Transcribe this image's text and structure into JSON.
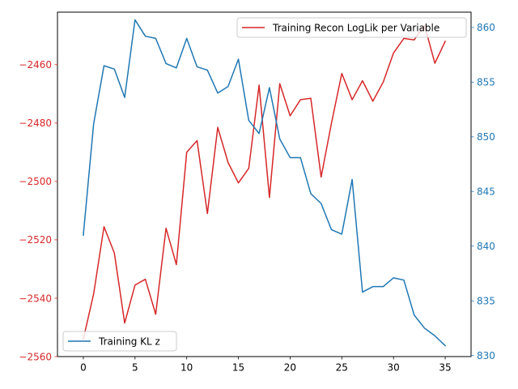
{
  "chart_data": {
    "type": "line",
    "x": [
      0,
      1,
      2,
      3,
      4,
      5,
      6,
      7,
      8,
      9,
      10,
      11,
      12,
      13,
      14,
      15,
      16,
      17,
      18,
      19,
      20,
      21,
      22,
      23,
      24,
      25,
      26,
      27,
      28,
      29,
      30,
      31,
      32,
      33,
      34,
      35
    ],
    "xlim": [
      -2.5,
      37.5
    ],
    "xticks": [
      0,
      5,
      10,
      15,
      20,
      25,
      30,
      35
    ],
    "series": [
      {
        "name": "Training Recon LogLik per Variable",
        "axis": "left",
        "color": "#d62728",
        "values": [
          -2554,
          -2538.5,
          -2515.5,
          -2524.5,
          -2548.5,
          -2535.5,
          -2533.5,
          -2545.5,
          -2516,
          -2528.5,
          -2490,
          -2486,
          -2511,
          -2481.5,
          -2493.5,
          -2500.5,
          -2495.5,
          -2467,
          -2505.5,
          -2466.5,
          -2477.5,
          -2472,
          -2471.5,
          -2498.5,
          -2480,
          -2463,
          -2472,
          -2465.5,
          -2472.5,
          -2466,
          -2456,
          -2451,
          -2451.5,
          -2446.5,
          -2459.5,
          -2452
        ]
      },
      {
        "name": "Training KL z",
        "axis": "right",
        "color": "#1f77b4",
        "values": [
          841,
          851.2,
          856.5,
          856.2,
          853.6,
          860.7,
          859.2,
          859,
          856.7,
          856.3,
          859,
          856.4,
          856.1,
          854,
          854.6,
          857.1,
          851.5,
          850.3,
          854.5,
          849.8,
          848.1,
          848.1,
          844.8,
          843.9,
          841.5,
          841.1,
          846.1,
          835.8,
          836.3,
          836.3,
          837.1,
          836.9,
          833.7,
          832.5,
          831.8,
          830.9
        ]
      }
    ],
    "left_axis": {
      "ylim": [
        -2560,
        -2442
      ],
      "ticks": [
        -2560,
        -2540,
        -2520,
        -2500,
        -2480,
        -2460
      ],
      "tick_labels": [
        "−2560",
        "−2540",
        "−2520",
        "−2500",
        "−2480",
        "−2460"
      ],
      "color": "#d62728"
    },
    "right_axis": {
      "ylim": [
        829.9,
        861.4
      ],
      "ticks": [
        830,
        835,
        840,
        845,
        850,
        855,
        860
      ],
      "tick_labels": [
        "830",
        "835",
        "840",
        "845",
        "850",
        "855",
        "860"
      ],
      "color": "#1f77b4"
    },
    "legends": [
      {
        "label": "Training Recon LogLik per Variable",
        "color": "#d62728",
        "placement": "upper right"
      },
      {
        "label": "Training KL z",
        "color": "#1f77b4",
        "placement": "lower left"
      }
    ],
    "grid": false
  }
}
